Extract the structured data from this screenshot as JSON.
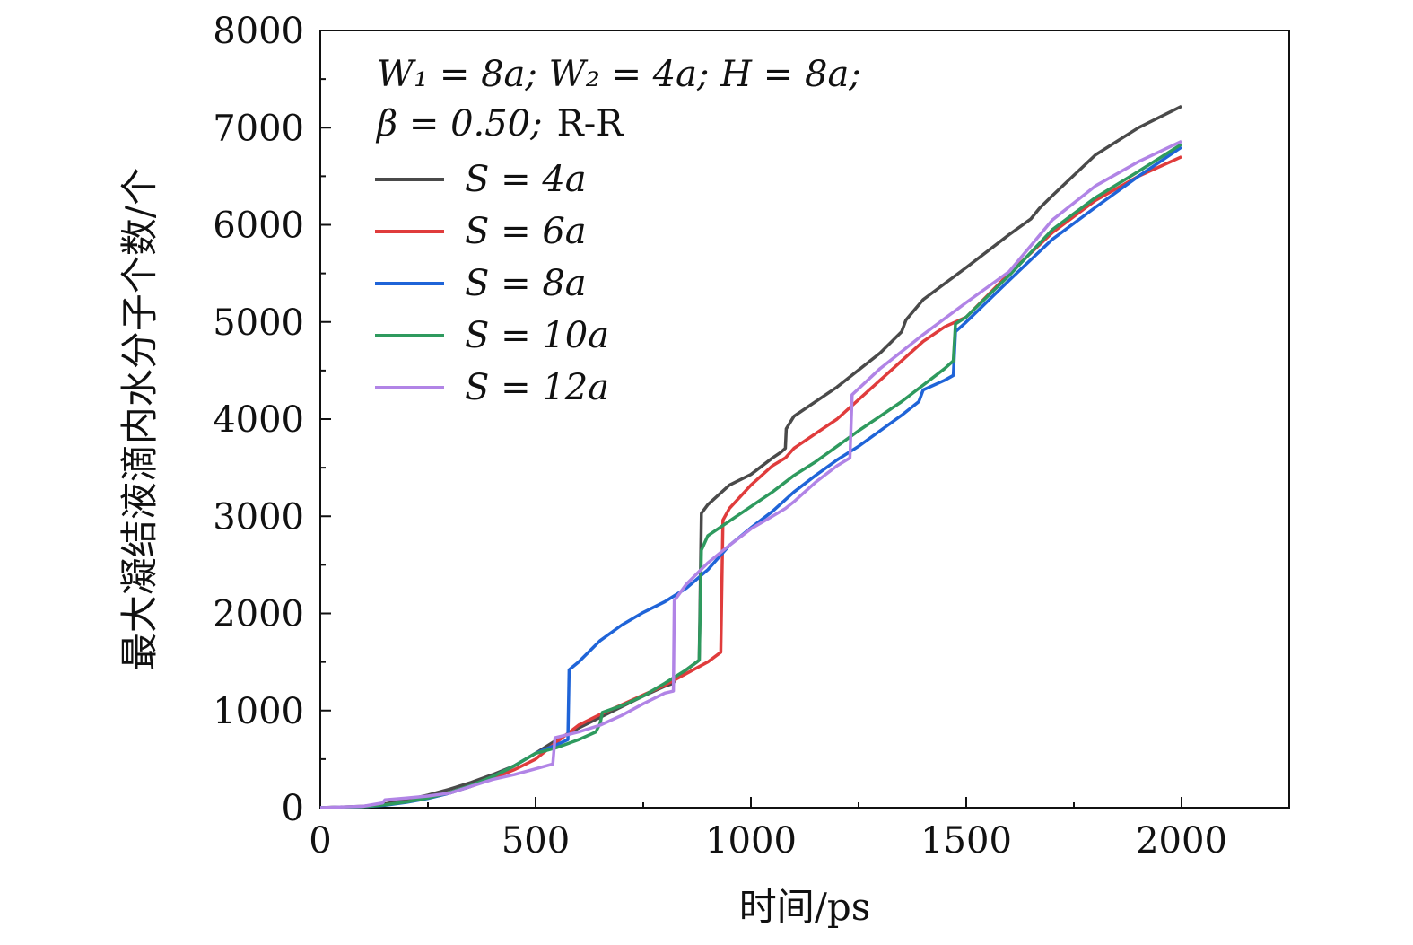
{
  "chart_data": {
    "type": "line",
    "xlabel": "时间/ps",
    "ylabel": "最大凝结液滴内水分子个数/个",
    "xlim": [
      0,
      2250
    ],
    "ylim": [
      0,
      8000
    ],
    "xticks": [
      0,
      500,
      1000,
      1500,
      2000
    ],
    "yticks": [
      0,
      1000,
      2000,
      3000,
      4000,
      5000,
      6000,
      7000,
      8000
    ],
    "annotation_line1": "W₁ = 8a;  W₂ = 4a;  H = 8a;",
    "annotation_line2_math": "β = 0.50;",
    "annotation_line2_text": "R-R",
    "legend_position": "top-left",
    "series": [
      {
        "name": "S = 4a",
        "color": "#4a4a4a",
        "points": [
          [
            0,
            0
          ],
          [
            100,
            15
          ],
          [
            150,
            40
          ],
          [
            200,
            80
          ],
          [
            250,
            130
          ],
          [
            300,
            190
          ],
          [
            350,
            260
          ],
          [
            400,
            340
          ],
          [
            450,
            430
          ],
          [
            500,
            560
          ],
          [
            550,
            700
          ],
          [
            600,
            820
          ],
          [
            650,
            930
          ],
          [
            700,
            1040
          ],
          [
            750,
            1150
          ],
          [
            800,
            1250
          ],
          [
            820,
            1280
          ],
          [
            825,
            1330
          ],
          [
            850,
            1420
          ],
          [
            875,
            1500
          ],
          [
            880,
            1520
          ],
          [
            885,
            3030
          ],
          [
            900,
            3120
          ],
          [
            950,
            3320
          ],
          [
            1000,
            3430
          ],
          [
            1050,
            3600
          ],
          [
            1070,
            3660
          ],
          [
            1080,
            3700
          ],
          [
            1082,
            3900
          ],
          [
            1100,
            4030
          ],
          [
            1200,
            4330
          ],
          [
            1300,
            4680
          ],
          [
            1350,
            4900
          ],
          [
            1360,
            5020
          ],
          [
            1400,
            5230
          ],
          [
            1500,
            5560
          ],
          [
            1600,
            5900
          ],
          [
            1650,
            6060
          ],
          [
            1670,
            6170
          ],
          [
            1700,
            6300
          ],
          [
            1800,
            6720
          ],
          [
            1900,
            7000
          ],
          [
            2000,
            7220
          ]
        ]
      },
      {
        "name": "S = 6a",
        "color": "#e03c3c",
        "points": [
          [
            0,
            0
          ],
          [
            100,
            10
          ],
          [
            150,
            30
          ],
          [
            200,
            60
          ],
          [
            250,
            100
          ],
          [
            300,
            150
          ],
          [
            350,
            220
          ],
          [
            400,
            300
          ],
          [
            450,
            390
          ],
          [
            500,
            500
          ],
          [
            550,
            680
          ],
          [
            600,
            850
          ],
          [
            650,
            960
          ],
          [
            700,
            1060
          ],
          [
            750,
            1160
          ],
          [
            800,
            1260
          ],
          [
            850,
            1380
          ],
          [
            900,
            1500
          ],
          [
            930,
            1600
          ],
          [
            935,
            2960
          ],
          [
            950,
            3080
          ],
          [
            1000,
            3320
          ],
          [
            1050,
            3520
          ],
          [
            1080,
            3600
          ],
          [
            1100,
            3700
          ],
          [
            1150,
            3850
          ],
          [
            1200,
            4000
          ],
          [
            1250,
            4200
          ],
          [
            1300,
            4400
          ],
          [
            1350,
            4600
          ],
          [
            1400,
            4800
          ],
          [
            1450,
            4950
          ],
          [
            1500,
            5050
          ],
          [
            1600,
            5500
          ],
          [
            1700,
            5920
          ],
          [
            1800,
            6250
          ],
          [
            1900,
            6500
          ],
          [
            2000,
            6700
          ]
        ]
      },
      {
        "name": "S = 8a",
        "color": "#1f64d8",
        "points": [
          [
            0,
            0
          ],
          [
            100,
            10
          ],
          [
            150,
            25
          ],
          [
            200,
            55
          ],
          [
            250,
            95
          ],
          [
            300,
            150
          ],
          [
            350,
            220
          ],
          [
            400,
            320
          ],
          [
            450,
            430
          ],
          [
            500,
            560
          ],
          [
            550,
            650
          ],
          [
            575,
            700
          ],
          [
            578,
            1420
          ],
          [
            600,
            1500
          ],
          [
            650,
            1720
          ],
          [
            700,
            1880
          ],
          [
            750,
            2010
          ],
          [
            800,
            2120
          ],
          [
            850,
            2260
          ],
          [
            900,
            2450
          ],
          [
            950,
            2700
          ],
          [
            1000,
            2880
          ],
          [
            1050,
            3050
          ],
          [
            1100,
            3250
          ],
          [
            1150,
            3420
          ],
          [
            1200,
            3580
          ],
          [
            1250,
            3720
          ],
          [
            1300,
            3880
          ],
          [
            1350,
            4040
          ],
          [
            1390,
            4180
          ],
          [
            1400,
            4300
          ],
          [
            1450,
            4400
          ],
          [
            1470,
            4450
          ],
          [
            1475,
            4900
          ],
          [
            1500,
            5000
          ],
          [
            1600,
            5430
          ],
          [
            1700,
            5850
          ],
          [
            1800,
            6180
          ],
          [
            1900,
            6500
          ],
          [
            2000,
            6800
          ]
        ]
      },
      {
        "name": "S = 10a",
        "color": "#2e9a5e",
        "points": [
          [
            0,
            0
          ],
          [
            100,
            10
          ],
          [
            150,
            30
          ],
          [
            200,
            60
          ],
          [
            250,
            100
          ],
          [
            300,
            155
          ],
          [
            350,
            230
          ],
          [
            400,
            320
          ],
          [
            450,
            430
          ],
          [
            500,
            560
          ],
          [
            550,
            620
          ],
          [
            600,
            700
          ],
          [
            640,
            780
          ],
          [
            650,
            870
          ],
          [
            655,
            980
          ],
          [
            700,
            1050
          ],
          [
            750,
            1150
          ],
          [
            800,
            1280
          ],
          [
            850,
            1420
          ],
          [
            880,
            1520
          ],
          [
            885,
            2650
          ],
          [
            900,
            2800
          ],
          [
            950,
            2950
          ],
          [
            1000,
            3100
          ],
          [
            1050,
            3250
          ],
          [
            1100,
            3420
          ],
          [
            1150,
            3560
          ],
          [
            1200,
            3720
          ],
          [
            1250,
            3880
          ],
          [
            1300,
            4030
          ],
          [
            1350,
            4180
          ],
          [
            1400,
            4350
          ],
          [
            1450,
            4520
          ],
          [
            1470,
            4600
          ],
          [
            1475,
            4980
          ],
          [
            1500,
            5050
          ],
          [
            1600,
            5480
          ],
          [
            1700,
            5950
          ],
          [
            1800,
            6280
          ],
          [
            1900,
            6550
          ],
          [
            2000,
            6830
          ]
        ]
      },
      {
        "name": "S = 12a",
        "color": "#b184e6",
        "points": [
          [
            0,
            0
          ],
          [
            100,
            15
          ],
          [
            145,
            50
          ],
          [
            150,
            80
          ],
          [
            200,
            100
          ],
          [
            250,
            120
          ],
          [
            300,
            150
          ],
          [
            350,
            220
          ],
          [
            400,
            290
          ],
          [
            450,
            340
          ],
          [
            500,
            400
          ],
          [
            540,
            450
          ],
          [
            545,
            720
          ],
          [
            600,
            780
          ],
          [
            650,
            850
          ],
          [
            700,
            950
          ],
          [
            750,
            1070
          ],
          [
            800,
            1180
          ],
          [
            820,
            1200
          ],
          [
            822,
            2130
          ],
          [
            850,
            2300
          ],
          [
            900,
            2520
          ],
          [
            950,
            2700
          ],
          [
            1000,
            2870
          ],
          [
            1050,
            3000
          ],
          [
            1080,
            3080
          ],
          [
            1100,
            3150
          ],
          [
            1150,
            3350
          ],
          [
            1200,
            3520
          ],
          [
            1230,
            3600
          ],
          [
            1235,
            4250
          ],
          [
            1300,
            4520
          ],
          [
            1400,
            4870
          ],
          [
            1500,
            5200
          ],
          [
            1600,
            5520
          ],
          [
            1700,
            6050
          ],
          [
            1800,
            6400
          ],
          [
            1900,
            6650
          ],
          [
            2000,
            6860
          ]
        ]
      }
    ]
  }
}
